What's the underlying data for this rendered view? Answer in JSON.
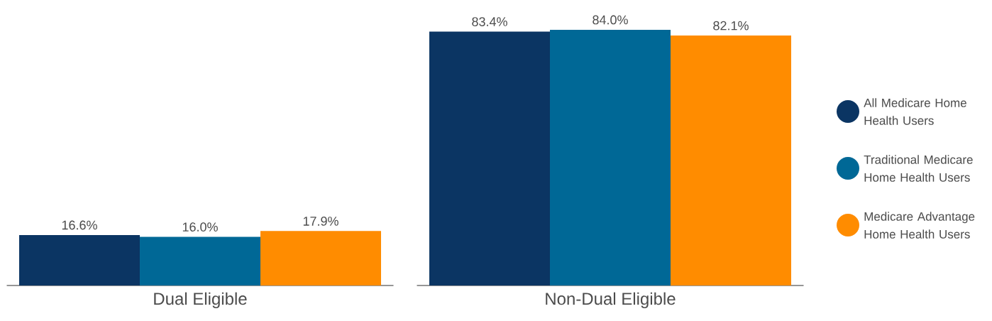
{
  "chart_data": {
    "type": "bar",
    "categories": [
      "Dual Eligible",
      "Non-Dual Eligible"
    ],
    "series": [
      {
        "name": "All Medicare Home Health Users",
        "color": "#0b3563",
        "values": [
          16.6,
          83.4
        ],
        "value_labels": [
          "16.6%",
          "83.4%"
        ]
      },
      {
        "name": "Traditional Medicare Home Health Users",
        "color": "#006896",
        "values": [
          16.0,
          84.0
        ],
        "value_labels": [
          "16.0%",
          "84.0%"
        ]
      },
      {
        "name": "Medicare Advantage Home Health Users",
        "color": "#ff8c00",
        "values": [
          17.9,
          82.1
        ],
        "value_labels": [
          "17.9%",
          "82.1%"
        ]
      }
    ],
    "legend": "right"
  }
}
